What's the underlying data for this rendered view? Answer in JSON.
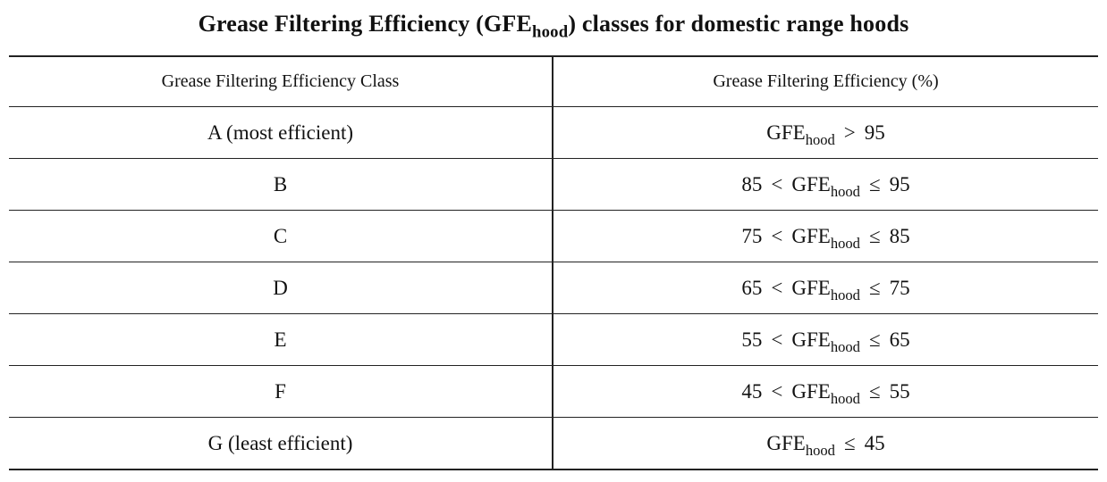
{
  "title": {
    "prefix": "Grease Filtering Efficiency (GFE",
    "subscript": "hood",
    "suffix": ") classes for domestic range hoods"
  },
  "table": {
    "headers": [
      "Grease Filtering Efficiency Class",
      "Grease Filtering Efficiency (%)"
    ],
    "rows": [
      {
        "class": "A (most efficient)",
        "lower": "",
        "lower_op": "",
        "var": "GFE",
        "sub": "hood",
        "upper_op": ">",
        "upper": "95"
      },
      {
        "class": "B",
        "lower": "85",
        "lower_op": "<",
        "var": "GFE",
        "sub": "hood",
        "upper_op": "≤",
        "upper": "95"
      },
      {
        "class": "C",
        "lower": "75",
        "lower_op": "<",
        "var": "GFE",
        "sub": "hood",
        "upper_op": "≤",
        "upper": "85"
      },
      {
        "class": "D",
        "lower": "65",
        "lower_op": "<",
        "var": "GFE",
        "sub": "hood",
        "upper_op": "≤",
        "upper": "75"
      },
      {
        "class": "E",
        "lower": "55",
        "lower_op": "<",
        "var": "GFE",
        "sub": "hood",
        "upper_op": "≤",
        "upper": "65"
      },
      {
        "class": "F",
        "lower": "45",
        "lower_op": "<",
        "var": "GFE",
        "sub": "hood",
        "upper_op": "≤",
        "upper": "55"
      },
      {
        "class": "G (least efficient)",
        "lower": "",
        "lower_op": "",
        "var": "GFE",
        "sub": "hood",
        "upper_op": "≤",
        "upper": "45"
      }
    ]
  }
}
